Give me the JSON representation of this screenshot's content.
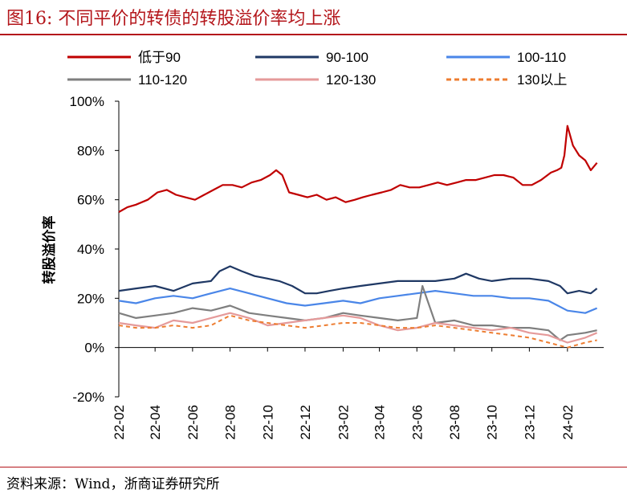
{
  "header": {
    "title": "图16:   不同平价的转债的转股溢价率均上涨"
  },
  "footer": {
    "source": "资料来源：Wind，浙商证券研究所"
  },
  "colors": {
    "lt90": "#c00000",
    "s90_100": "#1f3864",
    "s100_110": "#4a86e8",
    "s110_120": "#7f7f7f",
    "s120_130": "#e59a9a",
    "s130": "#ed7d31",
    "rule": "#b4161b"
  },
  "chart_data": {
    "type": "line",
    "title": "",
    "xlabel": "",
    "ylabel": "转股溢价率",
    "ylim": [
      -20,
      100
    ],
    "yticks": [
      "100%",
      "80%",
      "60%",
      "40%",
      "20%",
      "0%",
      "-20%"
    ],
    "ytick_values": [
      100,
      80,
      60,
      40,
      20,
      0,
      -20
    ],
    "xlim": [
      "2022-02-01",
      "2024-03-31"
    ],
    "x_tick_labels": [
      "22-02",
      "22-04",
      "22-06",
      "22-08",
      "22-10",
      "22-12",
      "23-02",
      "23-04",
      "23-06",
      "23-08",
      "23-10",
      "23-12",
      "24-02"
    ],
    "x_tick_dates": [
      "2022-02-01",
      "2022-04-01",
      "2022-06-01",
      "2022-08-01",
      "2022-10-01",
      "2022-12-01",
      "2023-02-01",
      "2023-04-01",
      "2023-06-01",
      "2023-08-01",
      "2023-10-01",
      "2023-12-01",
      "2024-02-01"
    ],
    "legend": "top",
    "grid": false,
    "series": [
      {
        "name": "低于90",
        "color": "#c00000",
        "dash": false,
        "x": [
          "2022-02-01",
          "2022-02-15",
          "2022-03-01",
          "2022-03-20",
          "2022-04-05",
          "2022-04-20",
          "2022-05-05",
          "2022-05-20",
          "2022-06-05",
          "2022-06-20",
          "2022-07-05",
          "2022-07-20",
          "2022-08-05",
          "2022-08-20",
          "2022-09-05",
          "2022-09-20",
          "2022-10-05",
          "2022-10-15",
          "2022-10-25",
          "2022-11-05",
          "2022-11-20",
          "2022-12-05",
          "2022-12-20",
          "2023-01-05",
          "2023-01-20",
          "2023-02-05",
          "2023-02-20",
          "2023-03-05",
          "2023-03-20",
          "2023-04-05",
          "2023-04-20",
          "2023-05-05",
          "2023-05-20",
          "2023-06-05",
          "2023-06-20",
          "2023-07-05",
          "2023-07-20",
          "2023-08-05",
          "2023-08-20",
          "2023-09-05",
          "2023-09-20",
          "2023-10-05",
          "2023-10-20",
          "2023-11-05",
          "2023-11-20",
          "2023-12-05",
          "2023-12-20",
          "2024-01-05",
          "2024-01-15",
          "2024-01-22",
          "2024-01-27",
          "2024-02-01",
          "2024-02-10",
          "2024-02-20",
          "2024-03-01",
          "2024-03-10",
          "2024-03-20"
        ],
        "y": [
          55,
          57,
          58,
          60,
          63,
          64,
          62,
          61,
          60,
          62,
          64,
          66,
          66,
          65,
          67,
          68,
          70,
          72,
          70,
          63,
          62,
          61,
          62,
          60,
          61,
          59,
          60,
          61,
          62,
          63,
          64,
          66,
          65,
          65,
          66,
          67,
          66,
          67,
          68,
          68,
          69,
          70,
          70,
          69,
          66,
          66,
          68,
          71,
          72,
          73,
          78,
          90,
          82,
          78,
          76,
          72,
          75
        ]
      },
      {
        "name": "90-100",
        "color": "#1f3864",
        "dash": false,
        "x": [
          "2022-02-01",
          "2022-03-01",
          "2022-04-01",
          "2022-05-01",
          "2022-06-01",
          "2022-07-01",
          "2022-07-15",
          "2022-08-01",
          "2022-08-20",
          "2022-09-10",
          "2022-10-01",
          "2022-10-20",
          "2022-11-10",
          "2022-12-01",
          "2022-12-20",
          "2023-01-10",
          "2023-02-01",
          "2023-03-01",
          "2023-04-01",
          "2023-05-01",
          "2023-06-01",
          "2023-07-01",
          "2023-08-01",
          "2023-08-20",
          "2023-09-10",
          "2023-10-01",
          "2023-11-01",
          "2023-12-01",
          "2024-01-01",
          "2024-01-20",
          "2024-02-01",
          "2024-02-20",
          "2024-03-10",
          "2024-03-20"
        ],
        "y": [
          23,
          24,
          25,
          23,
          26,
          27,
          31,
          33,
          31,
          29,
          28,
          27,
          25,
          22,
          22,
          23,
          24,
          25,
          26,
          27,
          27,
          27,
          28,
          30,
          28,
          27,
          28,
          28,
          27,
          25,
          22,
          23,
          22,
          24
        ]
      },
      {
        "name": "100-110",
        "color": "#4a86e8",
        "dash": false,
        "x": [
          "2022-02-01",
          "2022-03-01",
          "2022-04-01",
          "2022-05-01",
          "2022-06-01",
          "2022-07-01",
          "2022-08-01",
          "2022-09-01",
          "2022-10-01",
          "2022-11-01",
          "2022-12-01",
          "2023-01-01",
          "2023-02-01",
          "2023-03-01",
          "2023-04-01",
          "2023-05-01",
          "2023-06-01",
          "2023-07-01",
          "2023-08-01",
          "2023-09-01",
          "2023-10-01",
          "2023-11-01",
          "2023-12-01",
          "2024-01-01",
          "2024-02-01",
          "2024-03-01",
          "2024-03-20"
        ],
        "y": [
          19,
          18,
          20,
          21,
          20,
          22,
          24,
          22,
          20,
          18,
          17,
          18,
          19,
          18,
          20,
          21,
          22,
          23,
          22,
          21,
          21,
          20,
          20,
          19,
          15,
          14,
          16
        ]
      },
      {
        "name": "110-120",
        "color": "#7f7f7f",
        "dash": false,
        "x": [
          "2022-02-01",
          "2022-03-01",
          "2022-04-01",
          "2022-05-01",
          "2022-06-01",
          "2022-07-01",
          "2022-08-01",
          "2022-09-01",
          "2022-10-01",
          "2022-11-01",
          "2022-12-01",
          "2023-01-01",
          "2023-02-01",
          "2023-03-01",
          "2023-04-01",
          "2023-05-01",
          "2023-06-01",
          "2023-06-10",
          "2023-07-01",
          "2023-08-01",
          "2023-09-01",
          "2023-10-01",
          "2023-11-01",
          "2023-12-01",
          "2024-01-01",
          "2024-01-20",
          "2024-02-01",
          "2024-03-01",
          "2024-03-20"
        ],
        "y": [
          14,
          12,
          13,
          14,
          16,
          15,
          17,
          14,
          13,
          12,
          11,
          12,
          14,
          13,
          12,
          11,
          12,
          25,
          10,
          11,
          9,
          9,
          8,
          8,
          7,
          3,
          5,
          6,
          7
        ]
      },
      {
        "name": "120-130",
        "color": "#e59a9a",
        "dash": false,
        "x": [
          "2022-02-01",
          "2022-03-01",
          "2022-04-01",
          "2022-05-01",
          "2022-06-01",
          "2022-07-01",
          "2022-08-01",
          "2022-09-01",
          "2022-10-01",
          "2022-11-01",
          "2022-12-01",
          "2023-01-01",
          "2023-02-01",
          "2023-03-01",
          "2023-04-01",
          "2023-05-01",
          "2023-06-01",
          "2023-07-01",
          "2023-08-01",
          "2023-09-01",
          "2023-10-01",
          "2023-11-01",
          "2023-12-01",
          "2024-01-01",
          "2024-02-01",
          "2024-03-01",
          "2024-03-20"
        ],
        "y": [
          10,
          9,
          8,
          11,
          10,
          12,
          14,
          12,
          9,
          10,
          11,
          12,
          13,
          12,
          9,
          7,
          8,
          10,
          9,
          8,
          7,
          8,
          6,
          5,
          2,
          4,
          6
        ]
      },
      {
        "name": "130以上",
        "color": "#ed7d31",
        "dash": true,
        "x": [
          "2022-02-01",
          "2022-03-01",
          "2022-04-01",
          "2022-05-01",
          "2022-06-01",
          "2022-07-01",
          "2022-08-01",
          "2022-09-01",
          "2022-10-01",
          "2022-11-01",
          "2022-12-01",
          "2023-01-01",
          "2023-02-01",
          "2023-03-01",
          "2023-04-01",
          "2023-05-01",
          "2023-06-01",
          "2023-07-01",
          "2023-08-01",
          "2023-09-01",
          "2023-10-01",
          "2023-11-01",
          "2023-12-01",
          "2024-01-01",
          "2024-02-01",
          "2024-03-01",
          "2024-03-20"
        ],
        "y": [
          9,
          8,
          8,
          9,
          8,
          9,
          13,
          11,
          10,
          9,
          8,
          9,
          10,
          10,
          9,
          8,
          8,
          9,
          8,
          7,
          6,
          5,
          4,
          2,
          0,
          2,
          3
        ]
      }
    ]
  }
}
